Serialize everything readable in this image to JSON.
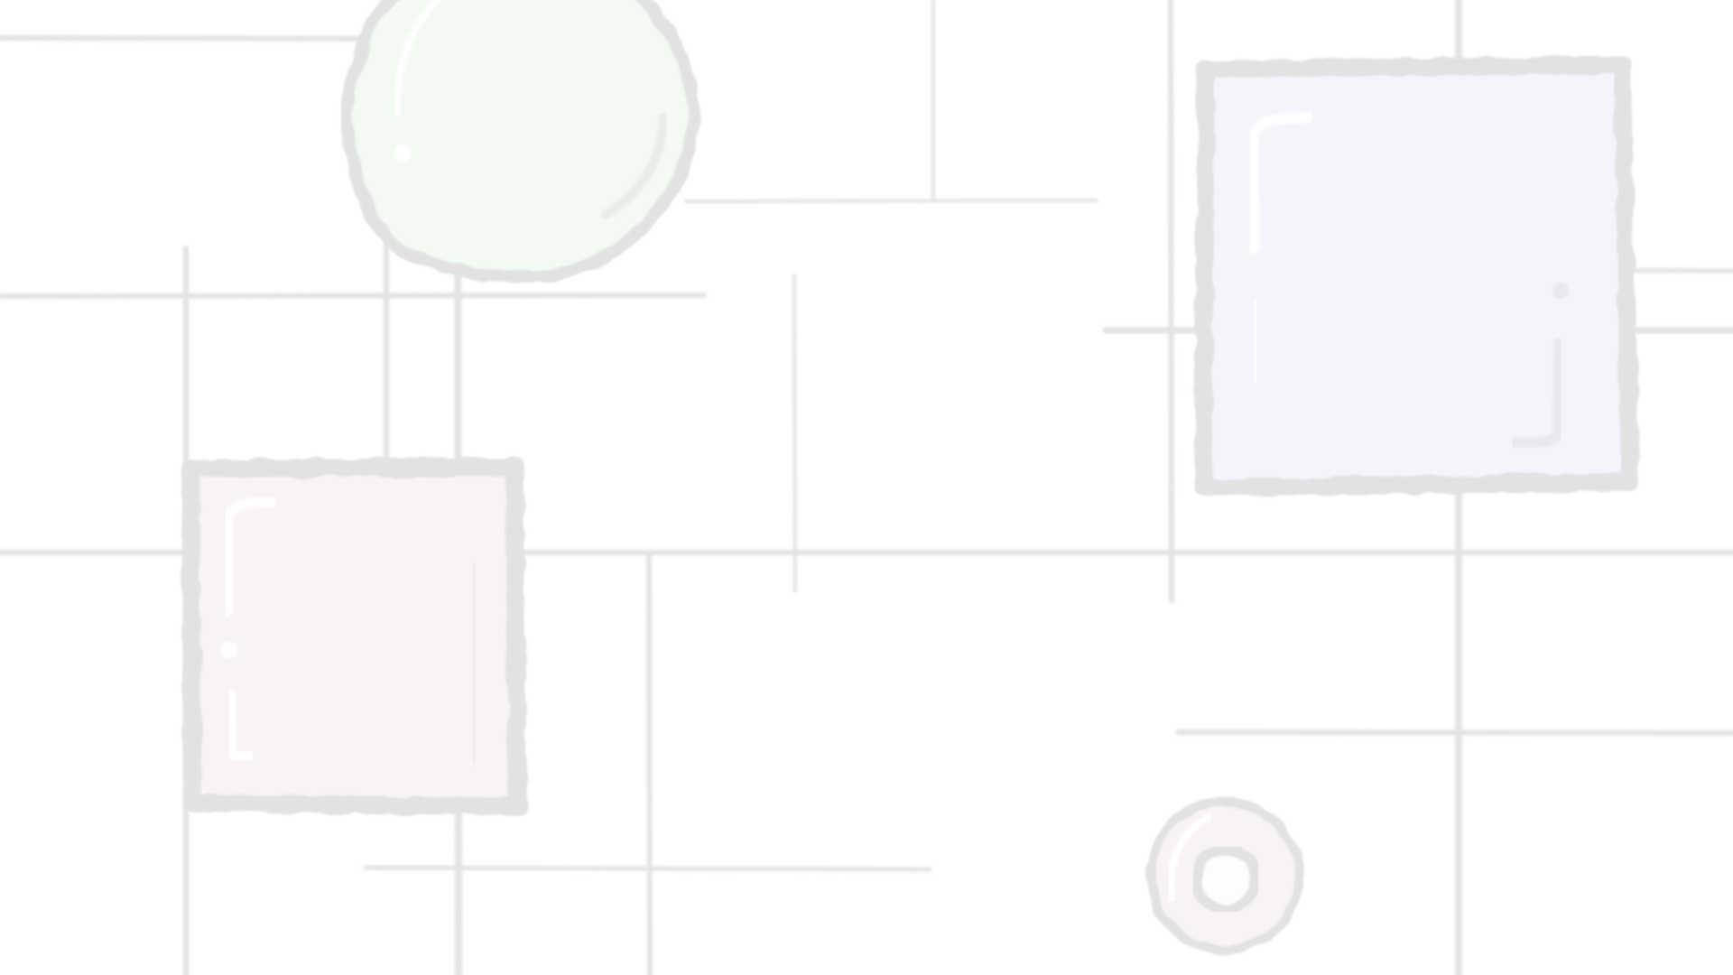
{
  "background": {
    "color": "#ffffff",
    "line_color": "#e3e3e3",
    "outline_color": "#e2e2e2",
    "highlight_color": "#ffffff"
  },
  "shapes": {
    "circle_top": {
      "fill": "#f3f9f3"
    },
    "square_right": {
      "fill": "#f4f5fb"
    },
    "square_left": {
      "fill": "#f9f4f4"
    },
    "ring_small": {
      "fill": "#f7f3f7"
    }
  }
}
